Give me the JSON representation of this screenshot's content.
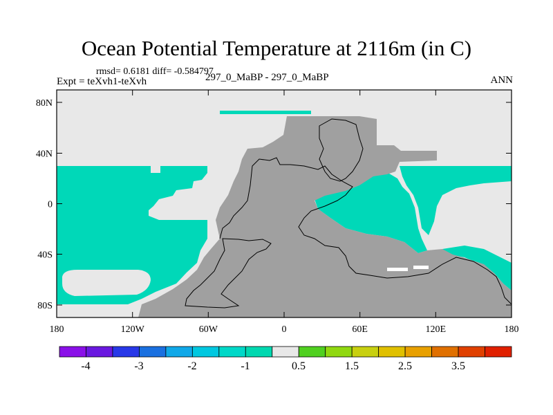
{
  "header": {
    "title": "Ocean Potential Temperature at 2116m (in C)",
    "stats": "rmsd= 0.6181  diff= -0.584797",
    "experiment": "Expt = teXvh1-teXvh",
    "comparison": "297_0_MaBP - 297_0_MaBP",
    "season": "ANN"
  },
  "map": {
    "projection": "cylindrical equidistant",
    "lon_range": [
      -180,
      180
    ],
    "lat_range": [
      -90,
      90
    ],
    "x_ticks": [
      "180",
      "120W",
      "60W",
      "0",
      "60E",
      "120E",
      "180"
    ],
    "y_ticks": [
      "80N",
      "40N",
      "0",
      "40S",
      "80S"
    ],
    "colors": {
      "land": "#a0a0a0",
      "near_zero": "#e8e8e8",
      "anomaly_-1": "#00d8b8",
      "coastline": "#000000"
    }
  },
  "colorbar": {
    "labels": [
      "-4",
      "-3",
      "-2",
      "-1",
      "0.5",
      "1.5",
      "2.5",
      "3.5"
    ],
    "colors": [
      "#8a10e8",
      "#6a18e0",
      "#2838e8",
      "#1a70e0",
      "#10a8e8",
      "#00c8e0",
      "#00d8c8",
      "#00d8b0",
      "#e8e8e8",
      "#50d020",
      "#90d810",
      "#c8d010",
      "#e0c000",
      "#e8a000",
      "#e07000",
      "#e04000",
      "#e02000"
    ]
  }
}
